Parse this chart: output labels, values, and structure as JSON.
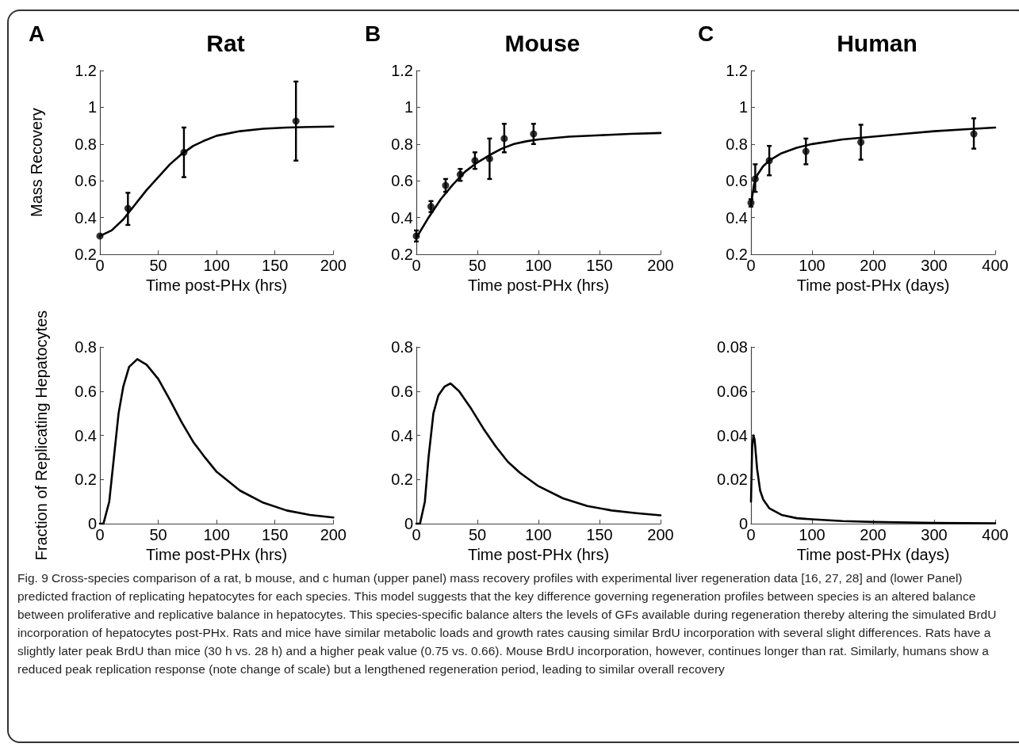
{
  "chart_data": [
    {
      "type": "line",
      "title": "Rat",
      "annotations": [
        "A"
      ],
      "ylabel": "Mass Recovery",
      "xlabel": "Time post-PHx (hrs)",
      "xlim": [
        0,
        200
      ],
      "xticks": [
        0,
        50,
        100,
        150,
        200
      ],
      "ylim": [
        0.2,
        1.2
      ],
      "yticks": [
        0.2,
        0.4,
        0.6,
        0.8,
        1,
        1.2
      ],
      "line_style": "solid",
      "series": [
        {
          "type": "line",
          "marker": "none",
          "color": "#000000",
          "x": [
            0,
            10,
            20,
            30,
            40,
            50,
            60,
            70,
            80,
            90,
            100,
            120,
            140,
            160,
            180,
            200
          ],
          "values": [
            0.3,
            0.33,
            0.39,
            0.47,
            0.55,
            0.62,
            0.69,
            0.745,
            0.79,
            0.82,
            0.845,
            0.87,
            0.883,
            0.89,
            0.893,
            0.895
          ]
        },
        {
          "type": "scatter",
          "marker": "circle",
          "color": "#000000",
          "x": [
            0,
            24,
            72,
            168
          ],
          "values": [
            0.3,
            0.45,
            0.755,
            0.925
          ],
          "errors": [
            null,
            [
              0.36,
              0.535
            ],
            [
              0.62,
              0.89
            ],
            [
              0.71,
              1.14
            ]
          ]
        }
      ]
    },
    {
      "type": "line",
      "title": "Mouse",
      "annotations": [
        "B"
      ],
      "xlabel": "Time post-PHx (hrs)",
      "xlim": [
        0,
        200
      ],
      "xticks": [
        0,
        50,
        100,
        150,
        200
      ],
      "ylim": [
        0.2,
        1.2
      ],
      "yticks": [
        0.2,
        0.4,
        0.6,
        0.8,
        1,
        1.2
      ],
      "line_style": "solid",
      "series": [
        {
          "type": "line",
          "marker": "none",
          "color": "#000000",
          "x": [
            0,
            10,
            20,
            30,
            40,
            50,
            60,
            70,
            80,
            90,
            100,
            125,
            150,
            175,
            200
          ],
          "values": [
            0.29,
            0.4,
            0.5,
            0.58,
            0.65,
            0.7,
            0.74,
            0.775,
            0.8,
            0.815,
            0.825,
            0.84,
            0.848,
            0.855,
            0.86
          ]
        },
        {
          "type": "scatter",
          "marker": "circle",
          "color": "#000000",
          "x": [
            0,
            12,
            24,
            36,
            48,
            60,
            72,
            96
          ],
          "values": [
            0.3,
            0.46,
            0.575,
            0.635,
            0.71,
            0.72,
            0.83,
            0.855
          ],
          "errors": [
            [
              0.27,
              0.33
            ],
            [
              0.43,
              0.49
            ],
            [
              0.54,
              0.61
            ],
            [
              0.6,
              0.665
            ],
            [
              0.665,
              0.755
            ],
            [
              0.61,
              0.83
            ],
            [
              0.755,
              0.91
            ],
            [
              0.8,
              0.91
            ]
          ]
        }
      ]
    },
    {
      "type": "line",
      "title": "Human",
      "annotations": [
        "C"
      ],
      "xlabel": "Time post-PHx (days)",
      "xlim": [
        0,
        400
      ],
      "xticks": [
        0,
        100,
        200,
        300,
        400
      ],
      "ylim": [
        0.2,
        1.2
      ],
      "yticks": [
        0.2,
        0.4,
        0.6,
        0.8,
        1,
        1.2
      ],
      "line_style": "solid",
      "series": [
        {
          "type": "line",
          "marker": "none",
          "color": "#000000",
          "x": [
            0,
            5,
            10,
            20,
            30,
            50,
            75,
            100,
            150,
            200,
            250,
            300,
            350,
            400
          ],
          "values": [
            0.47,
            0.58,
            0.63,
            0.68,
            0.71,
            0.75,
            0.78,
            0.8,
            0.825,
            0.84,
            0.855,
            0.87,
            0.88,
            0.89
          ]
        },
        {
          "type": "scatter",
          "marker": "circle",
          "color": "#000000",
          "x": [
            0,
            7,
            30,
            90,
            180,
            365
          ],
          "values": [
            0.48,
            0.61,
            0.71,
            0.76,
            0.81,
            0.855
          ],
          "errors": [
            [
              0.46,
              0.5
            ],
            [
              0.54,
              0.69
            ],
            [
              0.63,
              0.79
            ],
            [
              0.69,
              0.83
            ],
            [
              0.715,
              0.905
            ],
            [
              0.775,
              0.94
            ]
          ]
        }
      ]
    },
    {
      "type": "line",
      "ylabel": "Fraction of Replicating Hepatocytes",
      "xlabel": "Time post-PHx (hrs)",
      "xlim": [
        0,
        200
      ],
      "xticks": [
        0,
        50,
        100,
        150,
        200
      ],
      "ylim": [
        0,
        0.8
      ],
      "yticks": [
        0,
        0.2,
        0.4,
        0.6,
        0.8
      ],
      "line_style": "solid",
      "series": [
        {
          "color": "#000000",
          "x": [
            0,
            3,
            8,
            12,
            16,
            20,
            25,
            32,
            40,
            50,
            60,
            70,
            80,
            90,
            100,
            120,
            140,
            160,
            180,
            200
          ],
          "values": [
            0,
            0,
            0.1,
            0.3,
            0.5,
            0.62,
            0.71,
            0.745,
            0.72,
            0.655,
            0.56,
            0.46,
            0.37,
            0.3,
            0.235,
            0.15,
            0.095,
            0.06,
            0.04,
            0.028
          ]
        }
      ]
    },
    {
      "type": "line",
      "xlabel": "Time post-PHx (hrs)",
      "xlim": [
        0,
        200
      ],
      "xticks": [
        0,
        50,
        100,
        150,
        200
      ],
      "ylim": [
        0,
        0.8
      ],
      "yticks": [
        0,
        0.2,
        0.4,
        0.6,
        0.8
      ],
      "line_style": "solid",
      "series": [
        {
          "color": "#000000",
          "x": [
            0,
            3,
            7,
            10,
            14,
            18,
            23,
            28,
            35,
            45,
            55,
            65,
            75,
            85,
            100,
            120,
            140,
            160,
            180,
            200
          ],
          "values": [
            0,
            0,
            0.1,
            0.3,
            0.5,
            0.58,
            0.62,
            0.635,
            0.6,
            0.52,
            0.43,
            0.35,
            0.28,
            0.23,
            0.17,
            0.115,
            0.08,
            0.06,
            0.048,
            0.038
          ]
        }
      ]
    },
    {
      "type": "line",
      "xlabel": "Time post-PHx (days)",
      "xlim": [
        0,
        400
      ],
      "xticks": [
        0,
        100,
        200,
        300,
        400
      ],
      "ylim": [
        0,
        0.08
      ],
      "yticks": [
        0,
        0.02,
        0.04,
        0.06,
        0.08
      ],
      "line_style": "solid",
      "series": [
        {
          "color": "#000000",
          "x": [
            0,
            2,
            4,
            6,
            10,
            15,
            20,
            30,
            50,
            75,
            100,
            150,
            200,
            300,
            400
          ],
          "values": [
            0.01,
            0.035,
            0.04,
            0.038,
            0.025,
            0.015,
            0.011,
            0.007,
            0.004,
            0.0025,
            0.002,
            0.0012,
            0.0008,
            0.0004,
            0.0002
          ]
        }
      ]
    },
    {
      "type": "other",
      "annotations": [
        "Fig. 9 Cross-species comparison of a rat, b mouse, and c human (upper panel) mass recovery profiles with experimental liver regeneration data [16, 27, 28] and (lower Panel) predicted fraction of replicating hepatocytes for each species. This model suggests that the key difference governing regeneration profiles between species is an altered balance between proliferative and replicative balance in hepatocytes. This species-specific balance alters the levels of GFs available during regeneration thereby altering the simulated BrdU incorporation of hepatocytes post-PHx. Rats and mice have similar metabolic loads and growth rates causing similar BrdU incorporation with several slight differences. Rats have a slightly later peak BrdU than mice (30 h vs. 28 h) and a higher peak value (0.75 vs. 0.66). Mouse BrdU incorporation, however, continues longer than rat. Similarly, humans show a reduced peak replication response (note change of scale) but a lengthened regeneration period, leading to similar overall recovery"
      ]
    }
  ]
}
